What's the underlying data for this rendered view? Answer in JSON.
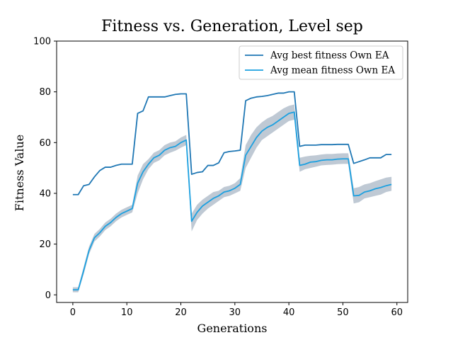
{
  "chart_data": {
    "type": "line",
    "title": "Fitness vs. Generation, Level sep",
    "xlabel": "Generations",
    "ylabel": "Fitness Value",
    "xlim": [
      -3,
      62
    ],
    "ylim": [
      -3,
      100
    ],
    "xticks": [
      0,
      10,
      20,
      30,
      40,
      50,
      60
    ],
    "yticks": [
      0,
      20,
      40,
      60,
      80,
      100
    ],
    "grid": false,
    "legend_position": "top-right",
    "x": [
      0,
      1,
      2,
      3,
      4,
      5,
      6,
      7,
      8,
      9,
      10,
      11,
      12,
      13,
      14,
      15,
      16,
      17,
      18,
      19,
      20,
      21,
      22,
      23,
      24,
      25,
      26,
      27,
      28,
      29,
      30,
      31,
      32,
      33,
      34,
      35,
      36,
      37,
      38,
      39,
      40,
      41,
      42,
      43,
      44,
      45,
      46,
      47,
      48,
      49,
      50,
      51,
      52,
      53,
      54,
      55,
      56,
      57,
      58,
      59
    ],
    "series": [
      {
        "name": "Avg best fitness Own EA",
        "color": "#1f77b4",
        "values": [
          39.5,
          39.5,
          43,
          43.5,
          46.5,
          49,
          50.3,
          50.3,
          51,
          51.5,
          51.5,
          51.5,
          71.5,
          72.5,
          78,
          78,
          78,
          78,
          78.5,
          79,
          79.2,
          79.2,
          47.5,
          48.2,
          48.5,
          51,
          51,
          52,
          56,
          56.5,
          56.7,
          57,
          76.5,
          77.5,
          78,
          78.2,
          78.5,
          79,
          79.5,
          79.5,
          80,
          80,
          58.5,
          59,
          59,
          59,
          59.2,
          59.2,
          59.2,
          59.3,
          59.3,
          59.3,
          51.8,
          52.5,
          53.2,
          54,
          54,
          54,
          55.3,
          55.3
        ]
      },
      {
        "name": "Avg mean fitness Own EA",
        "color": "#1ca0e0",
        "band_color": "#a9b7c6",
        "values": [
          2,
          2,
          9.5,
          17.5,
          22.5,
          24.5,
          27,
          28.5,
          30.5,
          32,
          33,
          34,
          44,
          48.5,
          51.5,
          54,
          55,
          57,
          58,
          58.5,
          60,
          61,
          29,
          32.5,
          35,
          36.5,
          38,
          39,
          40.5,
          41,
          42,
          43.5,
          55,
          58.5,
          62,
          64.5,
          66,
          67,
          68.5,
          70,
          71.5,
          72,
          51,
          51.5,
          52.3,
          52.5,
          53,
          53.2,
          53.2,
          53.5,
          53.6,
          53.6,
          39,
          39.2,
          40.5,
          41,
          41.8,
          42.3,
          43,
          43.5
        ],
        "lower": [
          1,
          1,
          8,
          16,
          21,
          23,
          25.5,
          27,
          29,
          30.5,
          31.5,
          32.5,
          40,
          45.5,
          49.5,
          52,
          53,
          55,
          56,
          56.8,
          58,
          59,
          25,
          29.5,
          32,
          34,
          35.5,
          37,
          38.5,
          39,
          40,
          41,
          50,
          54,
          58,
          61,
          62.5,
          64,
          65.5,
          67,
          68.5,
          69,
          48.5,
          49.5,
          50,
          50.5,
          51,
          51.2,
          51.3,
          51.5,
          51.6,
          51.6,
          36,
          36.5,
          38,
          38.5,
          39,
          39.5,
          40.5,
          41
        ],
        "upper": [
          3,
          3,
          11,
          19,
          24,
          26,
          28.5,
          30,
          32,
          33.5,
          34.5,
          35.5,
          47,
          51.5,
          53.5,
          56,
          57,
          59,
          60,
          60.5,
          62,
          63,
          32,
          35.5,
          37.5,
          39,
          40.5,
          41,
          42.5,
          43,
          44,
          46,
          59,
          63,
          66,
          68,
          69.5,
          70.5,
          72,
          73.5,
          74.5,
          75,
          54,
          54.5,
          54.8,
          55,
          55.3,
          55.5,
          55.5,
          55.7,
          55.8,
          55.8,
          42,
          42.5,
          43.5,
          44,
          44.8,
          45.5,
          46.2,
          46.5
        ]
      }
    ]
  }
}
